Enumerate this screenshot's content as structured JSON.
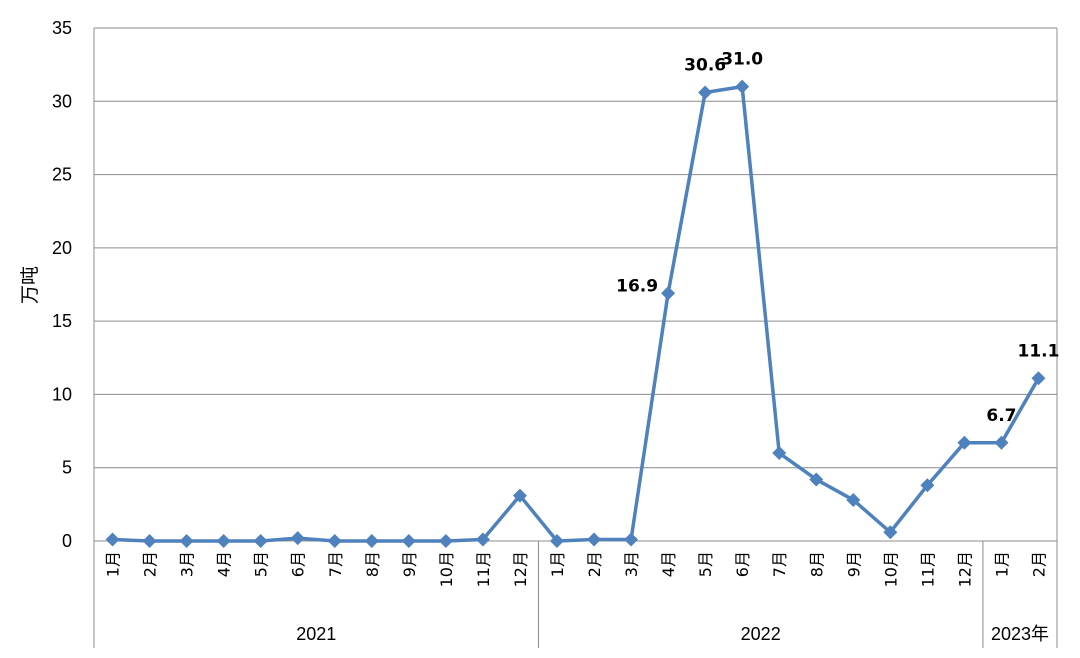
{
  "chart_data": {
    "type": "line",
    "ylabel": "万吨",
    "ylim": [
      0,
      35
    ],
    "yticks": [
      0,
      5,
      10,
      15,
      20,
      25,
      30,
      35
    ],
    "grid": true,
    "colors": {
      "series": "#4f81bd",
      "grid": "#8c8c8c"
    },
    "years": [
      {
        "label": "2021",
        "months": 12
      },
      {
        "label": "2022",
        "months": 12
      },
      {
        "label": "2023年",
        "months": 2
      }
    ],
    "categories": [
      "1月",
      "2月",
      "3月",
      "4月",
      "5月",
      "6月",
      "7月",
      "8月",
      "9月",
      "10月",
      "11月",
      "12月",
      "1月",
      "2月",
      "3月",
      "4月",
      "5月",
      "6月",
      "7月",
      "8月",
      "9月",
      "10月",
      "11月",
      "12月",
      "1月",
      "2月"
    ],
    "series": [
      {
        "values": [
          0.1,
          0.0,
          0.0,
          0.0,
          0.0,
          0.2,
          0.0,
          0.0,
          0.0,
          0.0,
          0.1,
          3.1,
          0.0,
          0.1,
          0.1,
          16.9,
          30.6,
          31.0,
          6.0,
          4.2,
          2.8,
          0.6,
          3.8,
          6.7,
          6.7,
          11.1
        ]
      }
    ],
    "data_labels": [
      {
        "index": 15,
        "text": "16.9",
        "pos": "left"
      },
      {
        "index": 16,
        "text": "30.6",
        "pos": "above"
      },
      {
        "index": 17,
        "text": "31.0",
        "pos": "above"
      },
      {
        "index": 24,
        "text": "6.7",
        "pos": "above"
      },
      {
        "index": 25,
        "text": "11.1",
        "pos": "above"
      }
    ]
  }
}
